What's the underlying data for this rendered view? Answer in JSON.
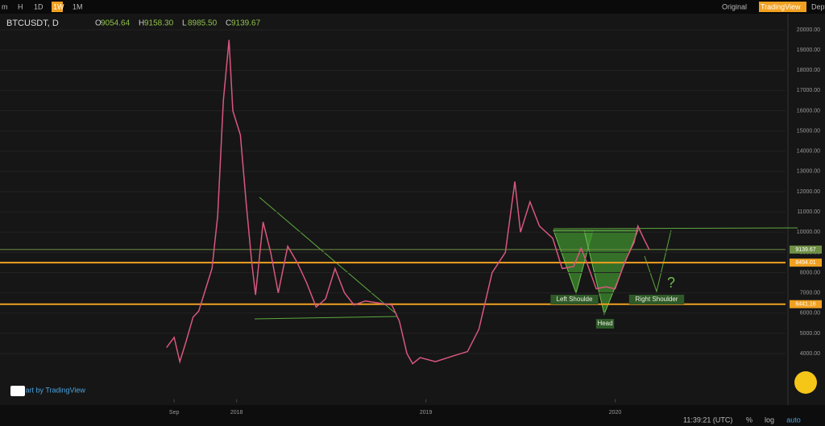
{
  "toolbar": {
    "intervals": [
      "m",
      "H",
      "1D",
      "1W",
      "1M"
    ],
    "active_interval": "1W",
    "views": [
      "Original",
      "TradingView",
      "Depth"
    ],
    "active_view": "TradingView"
  },
  "legend": {
    "symbol": "BTCUSDT, D",
    "ohlc": [
      {
        "key": "O",
        "value": "9054.64"
      },
      {
        "key": "H",
        "value": "9158.30"
      },
      {
        "key": "L",
        "value": "8985.50"
      },
      {
        "key": "C",
        "value": "9139.67"
      }
    ]
  },
  "chart": {
    "xlim": [
      2016.75,
      2020.9
    ],
    "ylim": [
      1750,
      20000
    ],
    "yticks": [
      {
        "value": 20000,
        "label": "20000.00"
      },
      {
        "value": 19000,
        "label": "19000.00"
      },
      {
        "value": 18000,
        "label": "18000.00"
      },
      {
        "value": 17000,
        "label": "17000.00"
      },
      {
        "value": 16000,
        "label": "16000.00"
      },
      {
        "value": 15000,
        "label": "15000.00"
      },
      {
        "value": 14000,
        "label": "14000.00"
      },
      {
        "value": 13000,
        "label": "13000.00"
      },
      {
        "value": 12000,
        "label": "12000.00"
      },
      {
        "value": 11000,
        "label": "11000.00"
      },
      {
        "value": 10000,
        "label": "10000.00"
      },
      {
        "value": 9000,
        "label": "9000.00"
      },
      {
        "value": 8000,
        "label": "8000.00"
      },
      {
        "value": 7000,
        "label": "7000.00"
      },
      {
        "value": 6000,
        "label": "6000.00"
      },
      {
        "value": 5000,
        "label": "5000.00"
      },
      {
        "value": 4000,
        "label": "4000.00"
      }
    ],
    "xticks": [
      {
        "value": 2017.67,
        "label": "Sep"
      },
      {
        "value": 2018,
        "label": "2018"
      },
      {
        "value": 2019,
        "label": "2019"
      },
      {
        "value": 2020,
        "label": "2020"
      }
    ],
    "price": {
      "color": "#d9577f",
      "x": [
        2017.63,
        2017.67,
        2017.7,
        2017.73,
        2017.77,
        2017.8,
        2017.84,
        2017.87,
        2017.9,
        2017.93,
        2017.96,
        2017.98,
        2018.02,
        2018.05,
        2018.08,
        2018.1,
        2018.14,
        2018.18,
        2018.22,
        2018.27,
        2018.32,
        2018.37,
        2018.42,
        2018.47,
        2018.52,
        2018.57,
        2018.62,
        2018.68,
        2018.75,
        2018.82,
        2018.86,
        2018.9,
        2018.93,
        2018.97,
        2019.05,
        2019.15,
        2019.22,
        2019.28,
        2019.35,
        2019.42,
        2019.47,
        2019.5,
        2019.55,
        2019.6,
        2019.67,
        2019.72,
        2019.78,
        2019.82,
        2019.85,
        2019.9,
        2019.95,
        2020,
        2020.05,
        2020.1,
        2020.12,
        2020.15,
        2020.18
      ],
      "close": [
        4300,
        4800,
        3600,
        4500,
        5800,
        6100,
        7300,
        8200,
        10800,
        16500,
        19500,
        16000,
        14800,
        11500,
        8500,
        6900,
        10500,
        9000,
        7000,
        9300,
        8500,
        7500,
        6300,
        6700,
        8200,
        7000,
        6400,
        6600,
        6500,
        6400,
        5600,
        4000,
        3500,
        3800,
        3600,
        3900,
        4100,
        5200,
        8000,
        9000,
        12500,
        10000,
        11500,
        10300,
        9700,
        8200,
        8300,
        9200,
        8500,
        7200,
        7300,
        7200,
        8500,
        9500,
        10300,
        9700,
        9140
      ]
    },
    "levels": [
      {
        "value": 9139.67,
        "label": "9139.67",
        "color": "#6f8f45"
      },
      {
        "value": 8494.01,
        "label": "8494.01",
        "color": "#f0a020"
      },
      {
        "value": 6441.16,
        "label": "6441.16",
        "color": "#f0a020"
      }
    ],
    "annotations": [
      "Left Shoulde",
      "Head",
      "Right Shoulder",
      "?"
    ]
  },
  "footer": {
    "brand": "Chart by TradingView",
    "time": "11:39:21 (UTC)",
    "controls": [
      "%",
      "log",
      "auto"
    ]
  }
}
